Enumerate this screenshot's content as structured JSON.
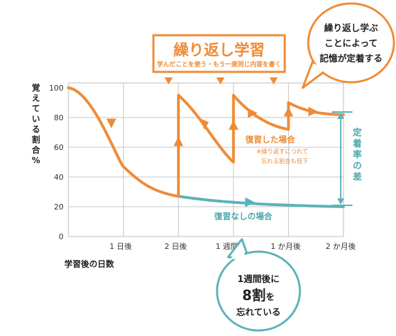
{
  "chart_data": {
    "type": "line",
    "title": "繰り返し学習",
    "subtitle": "学んだことを使う・もう一度同じ内容を書く",
    "xlabel": "学習後の日数",
    "ylabel": "覚えている割合%",
    "ylim": [
      0,
      100
    ],
    "y_ticks": [
      "100",
      "80",
      "60",
      "40",
      "20",
      "0"
    ],
    "x_ticks": [
      "1 日後",
      "2 日後",
      "1 週間後",
      "1 か月後",
      "2 か月後"
    ],
    "grid": true,
    "series": [
      {
        "name": "復習した場合",
        "color": "#ef8b36",
        "note": "※繰り返すにつれて忘れる割合も低下",
        "points": [
          [
            0,
            100
          ],
          [
            0.5,
            80
          ],
          [
            1,
            50
          ],
          [
            2,
            27
          ],
          [
            2,
            95
          ],
          [
            3,
            70
          ],
          [
            3,
            95
          ],
          [
            4,
            72
          ],
          [
            4,
            90
          ],
          [
            5,
            82
          ]
        ]
      },
      {
        "name": "復習なしの場合",
        "color": "#5bb3b8",
        "points": [
          [
            0,
            100
          ],
          [
            0.5,
            80
          ],
          [
            1,
            50
          ],
          [
            2,
            27
          ],
          [
            3,
            23
          ],
          [
            4,
            21
          ],
          [
            5,
            20
          ]
        ]
      }
    ],
    "annotations": {
      "retention_gap": "定着率の差",
      "bubble_top": [
        "繰り返し学ぶ",
        "ことによって",
        "記憶が定着する"
      ],
      "bubble_bottom": [
        "1週間後に",
        "8割",
        "を",
        "忘れている"
      ]
    }
  }
}
